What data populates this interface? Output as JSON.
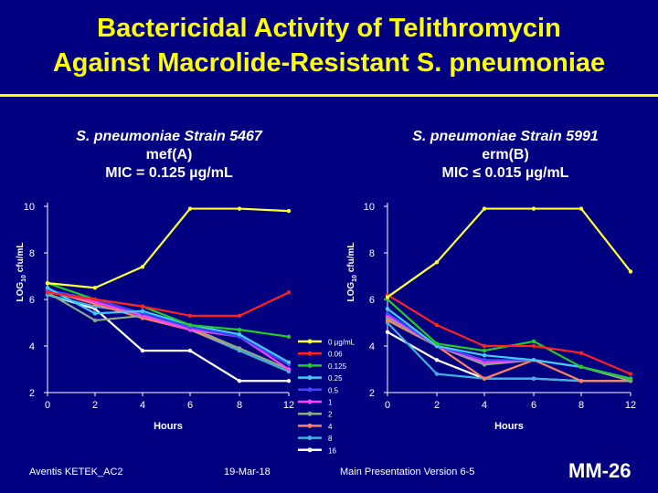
{
  "title_line1": "Bactericidal Activity of Telithromycin",
  "title_line2": "Against Macrolide-Resistant S. pneumoniae",
  "colors": {
    "background": "#000080",
    "title": "#ffff00"
  },
  "footer": {
    "left": "Aventis KETEK_AC2",
    "date": "19-Mar-18",
    "center": "Main Presentation Version 6-5",
    "slide_id": "MM-26"
  },
  "chart_data": [
    {
      "type": "line",
      "title_line1": "S. pneumoniae Strain 5467",
      "title_line2": "mef(A)",
      "title_line3": "MIC = 0.125 µg/mL",
      "xlabel": "Hours",
      "ylabel": "LOG10 cfu/mL",
      "x": [
        0,
        2,
        4,
        6,
        8,
        12
      ],
      "xticks": [
        "0",
        "2",
        "4",
        "6",
        "8",
        "12"
      ],
      "yticks": [
        "2",
        "4",
        "6",
        "8",
        "10"
      ],
      "ylim": [
        2,
        10
      ],
      "series": [
        {
          "name": "0 µg/mL",
          "color": "#ffff33",
          "values": [
            6.7,
            6.5,
            7.4,
            9.9,
            9.9,
            9.8
          ]
        },
        {
          "name": "0.06",
          "color": "#ff2020",
          "values": [
            6.3,
            6.0,
            5.7,
            5.3,
            5.3,
            6.3
          ]
        },
        {
          "name": "0.125",
          "color": "#22cc22",
          "values": [
            6.7,
            6.0,
            5.7,
            4.9,
            4.7,
            4.4
          ]
        },
        {
          "name": "0.25",
          "color": "#44ccff",
          "values": [
            6.5,
            5.4,
            5.5,
            4.9,
            4.5,
            3.3
          ]
        },
        {
          "name": "0.5",
          "color": "#4444ff",
          "values": [
            6.4,
            6.0,
            5.4,
            4.8,
            4.4,
            3.2
          ]
        },
        {
          "name": "1",
          "color": "#ff40ff",
          "values": [
            6.4,
            5.9,
            5.3,
            4.7,
            4.4,
            3.0
          ]
        },
        {
          "name": "2",
          "color": "#88aa88",
          "values": [
            6.3,
            5.1,
            5.3,
            4.8,
            3.9,
            3.0
          ]
        },
        {
          "name": "4",
          "color": "#ff8060",
          "values": [
            6.4,
            5.8,
            5.2,
            4.7,
            3.9,
            3.0
          ]
        },
        {
          "name": "8",
          "color": "#40b0e0",
          "values": [
            6.2,
            5.7,
            5.4,
            4.7,
            3.8,
            2.9
          ]
        },
        {
          "name": "16",
          "color": "#ffffff",
          "values": [
            6.2,
            5.6,
            3.8,
            3.8,
            2.5,
            2.5
          ]
        }
      ]
    },
    {
      "type": "line",
      "title_line1": "S. pneumoniae Strain 5991",
      "title_line2": "erm(B)",
      "title_line3": "MIC ≤ 0.015 µg/mL",
      "xlabel": "Hours",
      "ylabel": "LOG10 cfu/mL",
      "x": [
        0,
        2,
        4,
        6,
        8,
        12
      ],
      "xticks": [
        "0",
        "2",
        "4",
        "6",
        "8",
        "12"
      ],
      "yticks": [
        "2",
        "4",
        "6",
        "8",
        "10"
      ],
      "ylim": [
        2,
        10
      ],
      "series": [
        {
          "name": "0 µg/mL",
          "color": "#ffff33",
          "values": [
            6.1,
            7.6,
            9.9,
            9.9,
            9.9,
            7.2
          ]
        },
        {
          "name": "0.06",
          "color": "#ff2020",
          "values": [
            6.2,
            4.9,
            4.0,
            4.0,
            3.7,
            2.8
          ]
        },
        {
          "name": "0.125",
          "color": "#22cc22",
          "values": [
            6.0,
            4.1,
            3.8,
            4.2,
            3.1,
            2.6
          ]
        },
        {
          "name": "0.25",
          "color": "#44ccff",
          "values": [
            5.6,
            4.0,
            3.6,
            3.4,
            3.1,
            2.6
          ]
        },
        {
          "name": "0.5",
          "color": "#4444ff",
          "values": [
            5.4,
            4.0,
            3.4,
            3.4,
            3.1,
            2.6
          ]
        },
        {
          "name": "1",
          "color": "#ff40ff",
          "values": [
            5.3,
            4.0,
            3.3,
            3.4,
            3.1,
            2.6
          ]
        },
        {
          "name": "2",
          "color": "#88aa88",
          "values": [
            5.2,
            4.0,
            3.2,
            3.4,
            3.1,
            2.5
          ]
        },
        {
          "name": "4",
          "color": "#ff8060",
          "values": [
            5.1,
            4.0,
            2.6,
            3.4,
            2.5,
            2.5
          ]
        },
        {
          "name": "8",
          "color": "#40b0e0",
          "values": [
            5.0,
            2.8,
            2.6,
            2.6,
            2.5,
            2.5
          ]
        },
        {
          "name": "16",
          "color": "#ffffff",
          "values": [
            4.6,
            3.4,
            2.6,
            2.6,
            2.5,
            2.5
          ]
        }
      ]
    }
  ]
}
